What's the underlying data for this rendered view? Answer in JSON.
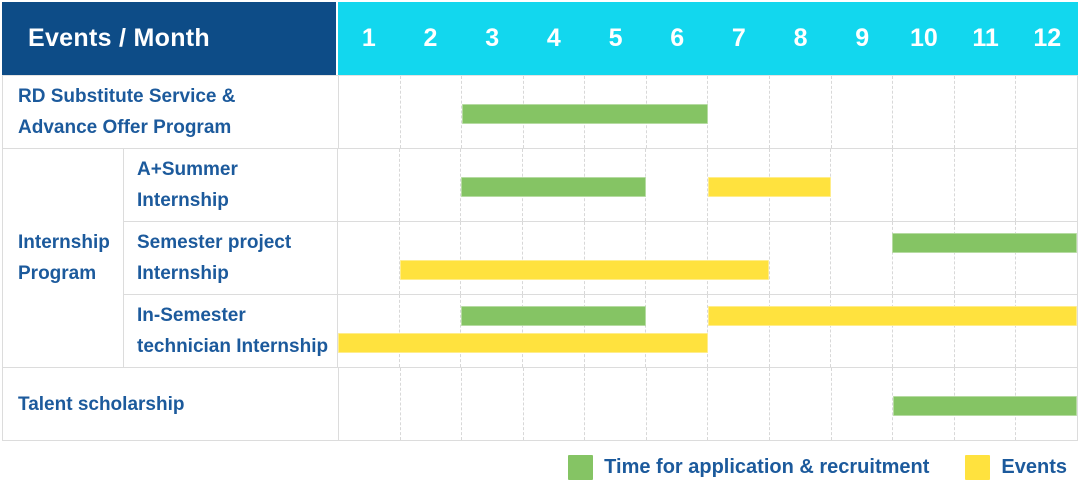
{
  "header": {
    "corner_label": "Events / Month"
  },
  "colors": {
    "header_bg": "#0d4c87",
    "months_bg": "#12d7ee",
    "application_green": "#85c464",
    "events_yellow": "#ffe23e",
    "label_blue": "#1c5a9c",
    "grid_line": "#dcdcdc"
  },
  "chart_data": {
    "type": "gantt",
    "x": {
      "unit": "month",
      "ticks": [
        "1",
        "2",
        "3",
        "4",
        "5",
        "6",
        "7",
        "8",
        "9",
        "10",
        "11",
        "12"
      ],
      "range": [
        1,
        12
      ]
    },
    "legend": {
      "position": "bottom-right",
      "items": [
        {
          "key": "application",
          "label": "Time for application & recruitment",
          "color": "#85c464"
        },
        {
          "key": "events",
          "label": "Events",
          "color": "#ffe23e"
        }
      ]
    },
    "rows": [
      {
        "group": "",
        "label_lines": [
          "RD Substitute Service &",
          "Advance Offer Program"
        ],
        "bars": [
          {
            "series": "application",
            "start_month": 3,
            "end_month": 6,
            "lane": "center"
          }
        ]
      },
      {
        "group": "Internship Program",
        "label_lines": [
          "A+Summer",
          "Internship"
        ],
        "bars": [
          {
            "series": "application",
            "start_month": 3,
            "end_month": 5,
            "lane": "center"
          },
          {
            "series": "events",
            "start_month": 7,
            "end_month": 8,
            "lane": "center"
          }
        ]
      },
      {
        "group": "Internship Program",
        "label_lines": [
          "Semester project",
          "Internship"
        ],
        "bars": [
          {
            "series": "application",
            "start_month": 10,
            "end_month": 12,
            "lane": "top"
          },
          {
            "series": "events",
            "start_month": 2,
            "end_month": 7,
            "lane": "bottom"
          }
        ]
      },
      {
        "group": "Internship Program",
        "label_lines": [
          "In-Semester",
          "technician Internship"
        ],
        "bars": [
          {
            "series": "application",
            "start_month": 3,
            "end_month": 5,
            "lane": "top"
          },
          {
            "series": "events",
            "start_month": 7,
            "end_month": 12,
            "lane": "top"
          },
          {
            "series": "events",
            "start_month": 1,
            "end_month": 6,
            "lane": "bottom"
          }
        ]
      },
      {
        "group": "",
        "label_lines": [
          "Talent scholarship"
        ],
        "bars": [
          {
            "series": "application",
            "start_month": 10,
            "end_month": 12,
            "lane": "center"
          }
        ]
      }
    ]
  }
}
